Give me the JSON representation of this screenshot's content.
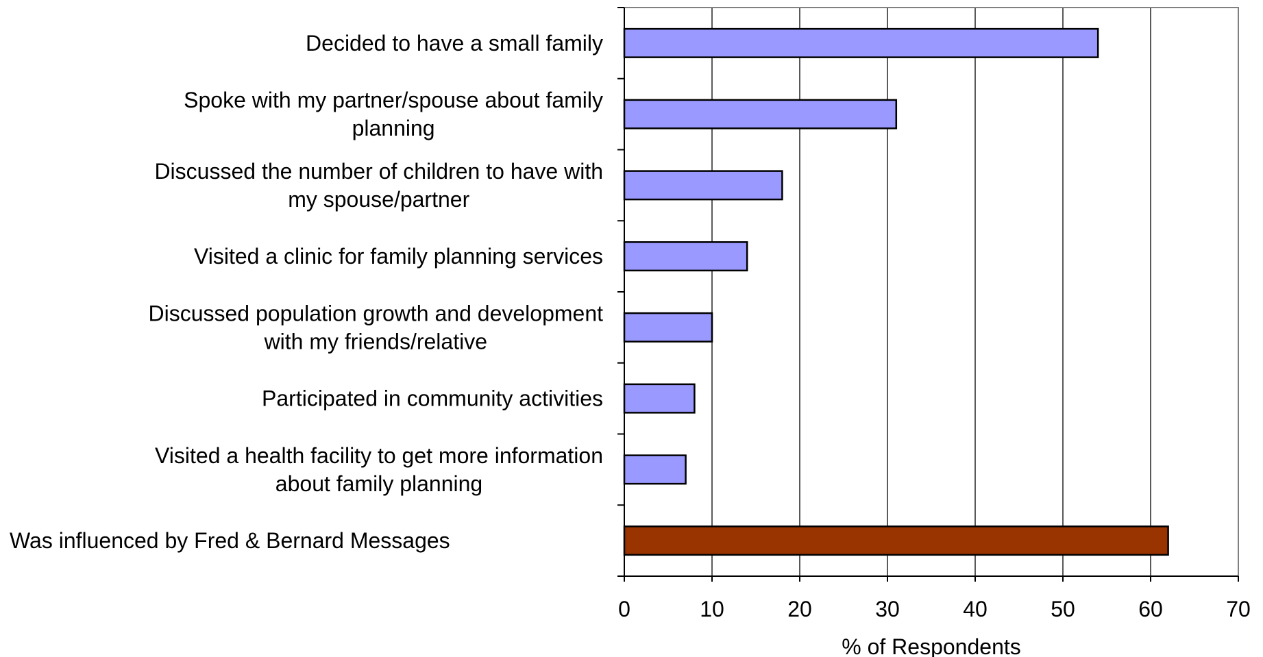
{
  "chart_data": {
    "type": "bar",
    "orientation": "horizontal",
    "title": "",
    "xlabel": "% of Respondents",
    "ylabel": "",
    "xlim": [
      0,
      70
    ],
    "xticks": [
      0,
      10,
      20,
      30,
      40,
      50,
      60,
      70
    ],
    "xtick_labels": [
      "0",
      "10",
      "20",
      "30",
      "40",
      "50",
      "60",
      "70"
    ],
    "grid": "vertical",
    "legend": "none",
    "categories": [
      [
        "Decided to have a small family"
      ],
      [
        "Spoke with my partner/spouse about family",
        "planning"
      ],
      [
        "Discussed the number of children to have with",
        "my spouse/partner"
      ],
      [
        "Visited a clinic for family planning services"
      ],
      [
        "Discussed population growth and development",
        "with my friends/relative"
      ],
      [
        "Participated in community activities"
      ],
      [
        "Visited a health facility to get more information",
        "about family planning"
      ],
      [
        "Was influenced by Fred & Bernard Messages"
      ]
    ],
    "values": [
      54,
      31,
      18,
      14,
      10,
      8,
      7,
      62
    ],
    "colors": [
      "#9999ff",
      "#9999ff",
      "#9999ff",
      "#9999ff",
      "#9999ff",
      "#9999ff",
      "#9999ff",
      "#993300"
    ]
  }
}
